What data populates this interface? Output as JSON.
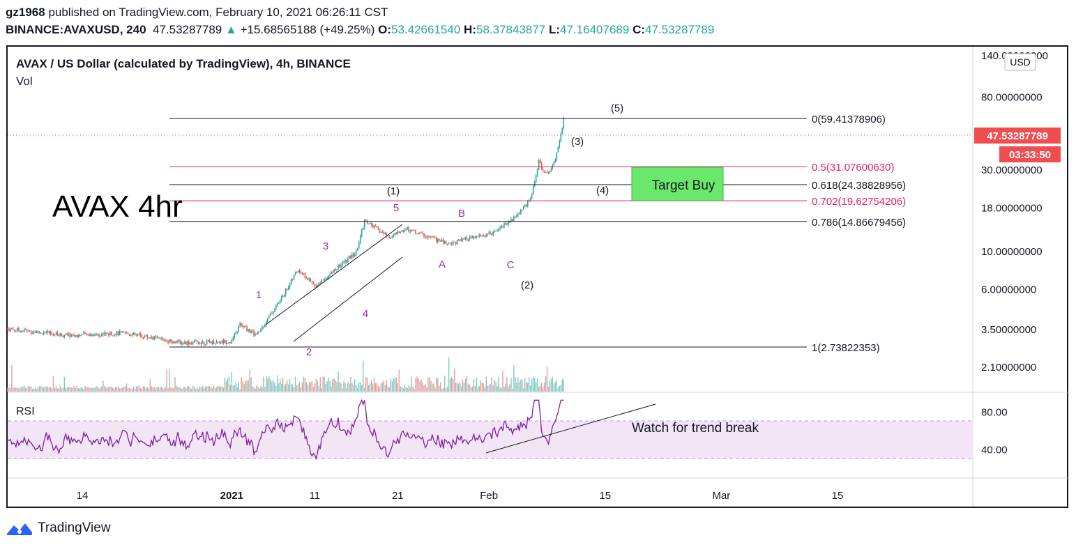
{
  "header": {
    "author": "gz1968",
    "published_text": "published on TradingView.com, February 10, 2021 06:26:11 CST",
    "symbol": "BINANCE:AVAXUSD, 240",
    "last": "47.53287789",
    "change_arrow": "▲",
    "change": "+15.68565188 (+49.25%)",
    "o_label": "O:",
    "o_value": "53.42661540",
    "h_label": "H:",
    "h_value": "58.37843877",
    "l_label": "L:",
    "l_value": "47.16407689",
    "c_label": "C:",
    "c_value": "47.53287789"
  },
  "legend": {
    "title": "AVAX / US Dollar (calculated by TradingView), 4h, BINANCE",
    "vol": "Vol",
    "rsi": "RSI"
  },
  "currency_button": "USD",
  "annotations": {
    "big_title": "AVAX 4hr",
    "target_buy": "Target Buy",
    "trend_note": "Watch for trend break",
    "wave_black": [
      "(1)",
      "(2)",
      "(3)",
      "(4)",
      "(5)"
    ],
    "wave_purple": [
      "1",
      "2",
      "3",
      "4",
      "5",
      "A",
      "B",
      "C"
    ]
  },
  "price_badges": {
    "last_price": "47.53287789",
    "countdown": "03:33:50"
  },
  "footer": {
    "brand": "TradingView"
  },
  "colors": {
    "up": "#26a69a",
    "down": "#ef5350",
    "fib_red": "#e91e63",
    "wave_purple": "#9c27b0",
    "target_fill": "#6be86b",
    "rsi_band": "#f3e5f5",
    "rsi_line": "#7b1fa2",
    "badge_red": "#f04e4e"
  },
  "chart_data": [
    {
      "type": "candlestick",
      "scale": "log",
      "y_axis_ticks": [
        "140.00000000",
        "80.00000000",
        "30.00000000",
        "18.00000000",
        "10.00000000",
        "6.00000000",
        "3.50000000",
        "2.10000000"
      ],
      "x_axis_ticks": [
        "14",
        "2021",
        "11",
        "21",
        "Feb",
        "15",
        "Mar",
        "15"
      ],
      "fib_levels": [
        {
          "label": "0(59.41378906)",
          "value": 59.41378906,
          "color": "black"
        },
        {
          "label": "0.5(31.07600630)",
          "value": 31.0760063,
          "color": "red"
        },
        {
          "label": "0.618(24.38828956)",
          "value": 24.38828956,
          "color": "black"
        },
        {
          "label": "0.702(19.62754206)",
          "value": 19.62754206,
          "color": "red"
        },
        {
          "label": "0.786(14.86679456)",
          "value": 14.86679456,
          "color": "black"
        },
        {
          "label": "1(2.73822353)",
          "value": 2.73822353,
          "color": "black"
        }
      ],
      "price_path": [
        {
          "t": "Dec 5",
          "v": 3.5
        },
        {
          "t": "Dec 12",
          "v": 3.2
        },
        {
          "t": "Dec 19",
          "v": 3.3
        },
        {
          "t": "Dec 26",
          "v": 2.9
        },
        {
          "t": "Jan 1",
          "v": 2.95
        },
        {
          "t": "Jan 2",
          "v": 3.7
        },
        {
          "t": "Jan 4",
          "v": 3.2
        },
        {
          "t": "Jan 7",
          "v": 5.3
        },
        {
          "t": "Jan 9",
          "v": 7.8
        },
        {
          "t": "Jan 11",
          "v": 6.2
        },
        {
          "t": "Jan 16",
          "v": 9.8
        },
        {
          "t": "Jan 17",
          "v": 15.0
        },
        {
          "t": "Jan 20",
          "v": 12.0
        },
        {
          "t": "Jan 22",
          "v": 13.5
        },
        {
          "t": "Jan 27",
          "v": 11.0
        },
        {
          "t": "Feb 1",
          "v": 12.5
        },
        {
          "t": "Feb 4",
          "v": 15.5
        },
        {
          "t": "Feb 6",
          "v": 20.0
        },
        {
          "t": "Feb 7",
          "v": 33.0
        },
        {
          "t": "Feb 8",
          "v": 28.0
        },
        {
          "t": "Feb 9",
          "v": 35.0
        },
        {
          "t": "Feb 10",
          "v": 58.4
        }
      ]
    },
    {
      "type": "line",
      "name": "RSI",
      "y_axis_ticks": [
        "80.00",
        "40.00"
      ],
      "band": [
        30,
        70
      ]
    }
  ]
}
